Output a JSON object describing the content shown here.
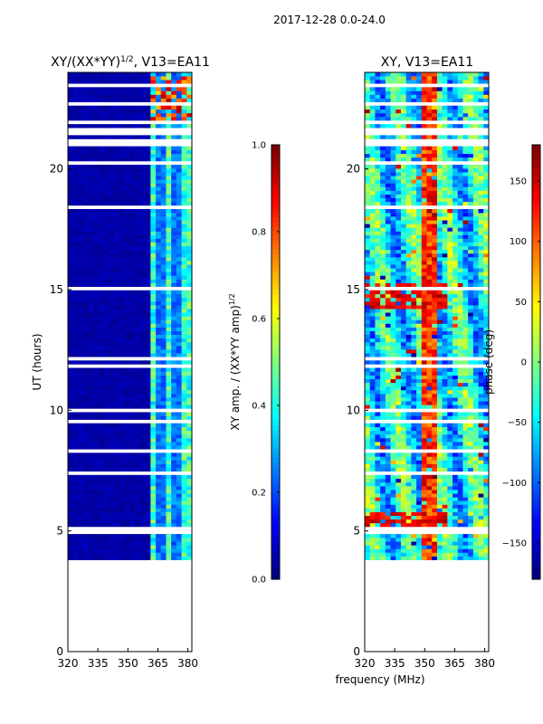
{
  "suptitle": "2017-12-28 0.0-24.0",
  "shared_xlabel": "frequency (MHz)",
  "colormap": [
    "#00007f",
    "#0000ff",
    "#007fff",
    "#00ffff",
    "#7fff7f",
    "#ffff00",
    "#ff7f00",
    "#ff0000",
    "#7f0000"
  ],
  "chart_data": [
    {
      "type": "heatmap",
      "title": "XY/(XX*YY)",
      "title_sup": "1/2",
      "title_suffix": ", V13=EA11",
      "xlabel": "",
      "ylabel": "UT (hours)",
      "xlim": [
        320,
        382
      ],
      "ylim": [
        0,
        24
      ],
      "xticks": [
        320,
        335,
        350,
        365,
        380
      ],
      "yticks": [
        0,
        5,
        10,
        15,
        20
      ],
      "data_range_ut": [
        3.8,
        24.0
      ],
      "active_band_mhz": [
        359,
        380
      ],
      "bright_band_ut": [
        22.0,
        23.8
      ],
      "colorbar": {
        "label": "XY amp. / (XX*YY amp)",
        "label_sup": "1/2",
        "range": [
          0.0,
          1.0
        ],
        "ticks": [
          "0.0",
          "0.2",
          "0.4",
          "0.6",
          "0.8",
          "1.0"
        ]
      }
    },
    {
      "type": "heatmap",
      "title": "XY, V13=EA11",
      "xlabel": "frequency (MHz)",
      "ylabel": "",
      "xlim": [
        320,
        382
      ],
      "ylim": [
        0,
        24
      ],
      "xticks": [
        320,
        335,
        350,
        365,
        380
      ],
      "yticks": [
        0,
        5,
        10,
        15,
        20
      ],
      "data_range_ut": [
        3.8,
        24.0
      ],
      "colorbar": {
        "label": "phase (deg)",
        "range": [
          -180,
          180
        ],
        "ticks": [
          "−150",
          "−100",
          "−50",
          "0",
          "50",
          "100",
          "150"
        ]
      }
    }
  ]
}
